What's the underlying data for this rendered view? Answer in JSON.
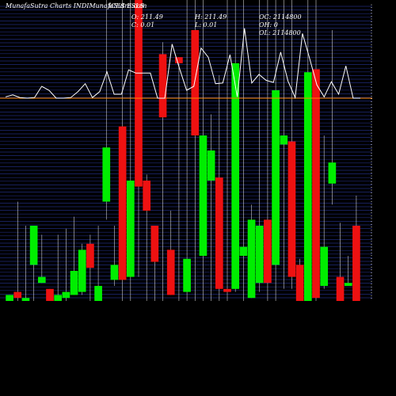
{
  "header": {
    "site": "MunafaSutra Charts INDIMunafaSutra.com",
    "symbol": "ICES FSLS",
    "open": "O: 211.49",
    "high": "H: 211.49",
    "close": "C: 0.01",
    "low": "L: 0.01",
    "oc": "OC: 2114800",
    "oh": "OH: 0",
    "ol": "OL: 2114800"
  },
  "chart_data": {
    "type": "candlestick",
    "title": "",
    "price_ylim": [
      0,
      100
    ],
    "reference_line_value": 100,
    "colors": {
      "background": "#000000",
      "up": "#00ee00",
      "down": "#ee1111",
      "wick": "#ffffff",
      "grid": "#1f2a7a",
      "indicator": "#ffffff",
      "reference": "#ff8800"
    },
    "candles": [
      {
        "c": "up",
        "open": 0,
        "close": 2,
        "high": 2,
        "low": 0
      },
      {
        "c": "down",
        "open": 3,
        "close": 1,
        "high": 33,
        "low": 0
      },
      {
        "c": "up",
        "open": 0,
        "close": 1,
        "high": 25,
        "low": 0
      },
      {
        "c": "up",
        "open": 12,
        "close": 25,
        "high": 25,
        "low": 0
      },
      {
        "c": "up",
        "open": 6,
        "close": 8,
        "high": 22,
        "low": 6
      },
      {
        "c": "down",
        "open": 4,
        "close": 0,
        "high": 4,
        "low": 0
      },
      {
        "c": "up",
        "open": 0,
        "close": 2,
        "high": 22,
        "low": 0
      },
      {
        "c": "up",
        "open": 1,
        "close": 3,
        "high": 24,
        "low": 0
      },
      {
        "c": "up",
        "open": 2,
        "close": 10,
        "high": 28,
        "low": 2
      },
      {
        "c": "up",
        "open": 3,
        "close": 17,
        "high": 19,
        "low": 2
      },
      {
        "c": "down",
        "open": 19,
        "close": 11,
        "high": 22,
        "low": 0
      },
      {
        "c": "up",
        "open": 0,
        "close": 5,
        "high": 25,
        "low": 0
      },
      {
        "c": "up",
        "open": 33,
        "close": 51,
        "high": 100,
        "low": 27
      },
      {
        "c": "up",
        "open": 7,
        "close": 12,
        "high": 25,
        "low": 5
      },
      {
        "c": "down",
        "open": 58,
        "close": 7,
        "high": 100,
        "low": 0
      },
      {
        "c": "up",
        "open": 8,
        "close": 40,
        "high": 100,
        "low": 0
      },
      {
        "c": "down",
        "open": 100,
        "close": 38,
        "high": 100,
        "low": 8
      },
      {
        "c": "down",
        "open": 40,
        "close": 30,
        "high": 42,
        "low": 0
      },
      {
        "c": "down",
        "open": 25,
        "close": 13,
        "high": 25,
        "low": 0
      },
      {
        "c": "down",
        "open": 61,
        "close": 82,
        "high": 86,
        "low": 0
      },
      {
        "c": "down",
        "open": 17,
        "close": 2,
        "high": 30,
        "low": 2
      },
      {
        "c": "down",
        "open": 81,
        "close": 79,
        "high": 81,
        "low": 0
      },
      {
        "c": "up",
        "open": 3,
        "close": 14,
        "high": 100,
        "low": 0
      },
      {
        "c": "down",
        "open": 55,
        "close": 90,
        "high": 100,
        "low": 0
      },
      {
        "c": "up",
        "open": 15,
        "close": 55,
        "high": 100,
        "low": 0
      },
      {
        "c": "up",
        "open": 40,
        "close": 50,
        "high": 62,
        "low": 0
      },
      {
        "c": "down",
        "open": 4,
        "close": 41,
        "high": 75,
        "low": 0
      },
      {
        "c": "down",
        "open": 4,
        "close": 3,
        "high": 100,
        "low": 0
      },
      {
        "c": "up",
        "open": 4,
        "close": 79,
        "high": 100,
        "low": 3
      },
      {
        "c": "up",
        "open": 15,
        "close": 18,
        "high": 100,
        "low": 0
      },
      {
        "c": "up",
        "open": 1,
        "close": 27,
        "high": 32,
        "low": 1
      },
      {
        "c": "up",
        "open": 6,
        "close": 25,
        "high": 100,
        "low": 3
      },
      {
        "c": "down",
        "open": 27,
        "close": 6,
        "high": 100,
        "low": 0
      },
      {
        "c": "up",
        "open": 12,
        "close": 70,
        "high": 100,
        "low": 0
      },
      {
        "c": "up",
        "open": 55,
        "close": 52,
        "high": 100,
        "low": 4
      },
      {
        "c": "down",
        "open": 53,
        "close": 8,
        "high": 100,
        "low": 4
      },
      {
        "c": "down",
        "open": 12,
        "close": 0,
        "high": 14,
        "low": 0
      },
      {
        "c": "up",
        "open": 0,
        "close": 76,
        "high": 100,
        "low": 0
      },
      {
        "c": "down",
        "open": 77,
        "close": 1,
        "high": 100,
        "low": 0
      },
      {
        "c": "up",
        "open": 5,
        "close": 18,
        "high": 55,
        "low": 4
      },
      {
        "c": "up",
        "open": 39,
        "close": 46,
        "high": 90,
        "low": 32
      },
      {
        "c": "down",
        "open": 8,
        "close": 0,
        "high": 26,
        "low": 0
      },
      {
        "c": "up",
        "open": 5,
        "close": 6,
        "high": 15,
        "low": 5
      },
      {
        "c": "down",
        "open": 25,
        "close": 0,
        "high": 35,
        "low": 0
      }
    ],
    "indicator_values": [
      0.2,
      0.5,
      0.1,
      0,
      0.1,
      1.8,
      1.2,
      0,
      0,
      0.1,
      1,
      2.2,
      0.1,
      1,
      4,
      0.6,
      0.6,
      4.3,
      3.8,
      3.8,
      3.8,
      0,
      0,
      8.2,
      4.6,
      1.2,
      1.8,
      7.6,
      6.2,
      2.2,
      2.3,
      6.6,
      0.2,
      10.6,
      2.3,
      3.6,
      2.7,
      2.4,
      7,
      2.6,
      0.1,
      9.8,
      6,
      2,
      0.2,
      2.5,
      0.6,
      4.9,
      0,
      0
    ]
  }
}
